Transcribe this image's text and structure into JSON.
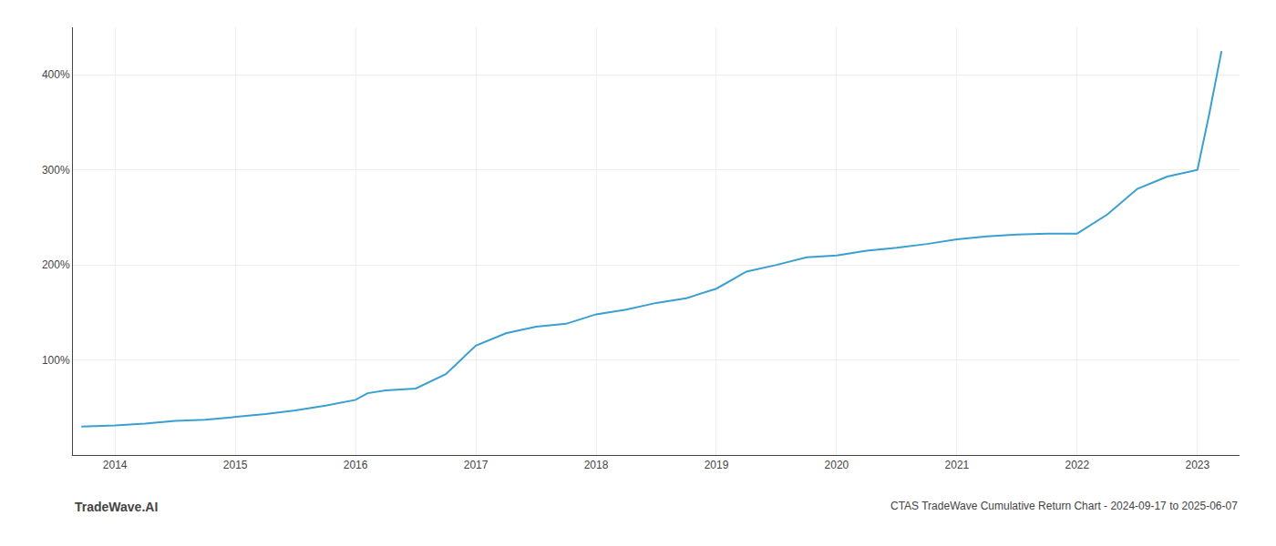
{
  "chart_data": {
    "type": "line",
    "title": "CTAS TradeWave Cumulative Return Chart - 2024-09-17 to 2025-06-07",
    "annotations": [
      "TradeWave.AI"
    ],
    "x": [
      2013.72,
      2014.0,
      2014.25,
      2014.5,
      2014.75,
      2015.0,
      2015.25,
      2015.5,
      2015.75,
      2016.0,
      2016.1,
      2016.25,
      2016.5,
      2016.75,
      2017.0,
      2017.25,
      2017.5,
      2017.75,
      2018.0,
      2018.25,
      2018.5,
      2018.75,
      2019.0,
      2019.25,
      2019.5,
      2019.75,
      2020.0,
      2020.25,
      2020.5,
      2020.75,
      2021.0,
      2021.25,
      2021.5,
      2021.75,
      2022.0,
      2022.25,
      2022.5,
      2022.75,
      2023.0,
      2023.1,
      2023.2
    ],
    "values": [
      30,
      31,
      33,
      36,
      37,
      40,
      43,
      47,
      52,
      58,
      65,
      68,
      70,
      85,
      115,
      128,
      135,
      138,
      148,
      153,
      160,
      165,
      175,
      193,
      200,
      208,
      210,
      215,
      218,
      222,
      227,
      230,
      232,
      233,
      233,
      253,
      280,
      293,
      300,
      360,
      425
    ],
    "color": "#3a9fd1",
    "xlim": [
      2013.65,
      2023.35
    ],
    "ylim": [
      0,
      450
    ],
    "xticks": [
      2014,
      2015,
      2016,
      2017,
      2018,
      2019,
      2020,
      2021,
      2022,
      2023
    ],
    "yticks": [
      {
        "value": 100,
        "label": "100%"
      },
      {
        "value": 200,
        "label": "200%"
      },
      {
        "value": 300,
        "label": "300%"
      },
      {
        "value": 400,
        "label": "400%"
      }
    ],
    "grid": true
  }
}
